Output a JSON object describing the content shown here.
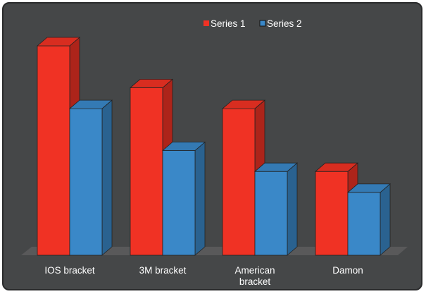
{
  "chart_data": {
    "type": "bar",
    "style": "3d-clustered-column",
    "categories": [
      "IOS bracket",
      "3M bracket",
      "American bracket",
      "Damon"
    ],
    "series": [
      {
        "name": "Series 1",
        "color": "#f03224",
        "values": [
          10,
          8,
          7,
          4
        ]
      },
      {
        "name": "Series 2",
        "color": "#3a88c8",
        "values": [
          7,
          5,
          4,
          3
        ]
      }
    ],
    "ylim": [
      0,
      10
    ],
    "grid": false,
    "legend_position": "top-center",
    "background_color": "#454748",
    "floor_color": "#59595a"
  }
}
